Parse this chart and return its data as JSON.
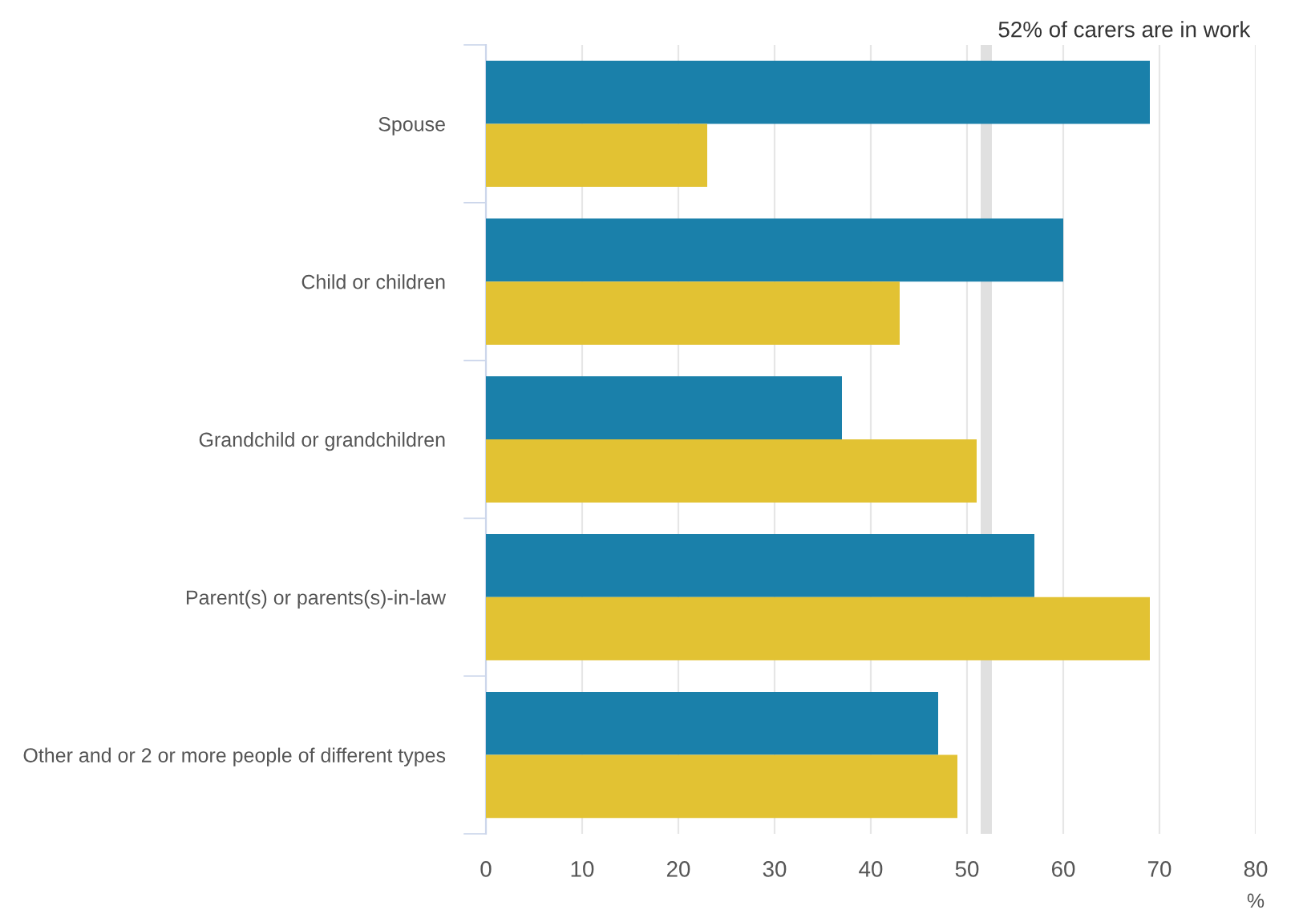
{
  "chart_data": {
    "type": "bar",
    "orientation": "horizontal",
    "xlabel": "%",
    "categories": [
      "Spouse",
      "Child or children",
      "Grandchild or grandchildren",
      "Parent(s) or parents(s)-in-law",
      "Other and or 2 or more people of different types"
    ],
    "series": [
      {
        "color": "#1a80aa",
        "values": [
          69,
          60,
          37,
          57,
          47
        ]
      },
      {
        "color": "#e2c233",
        "values": [
          23,
          43,
          51,
          69,
          49
        ]
      }
    ],
    "xlim": [
      0,
      80
    ],
    "xticks": [
      0,
      10,
      20,
      30,
      40,
      50,
      60,
      70,
      80
    ],
    "grid": "x",
    "ref_lines": [
      {
        "axis": "x",
        "value": 52,
        "label": "52% of carers are in work",
        "color": "#e0e0e0"
      }
    ]
  }
}
